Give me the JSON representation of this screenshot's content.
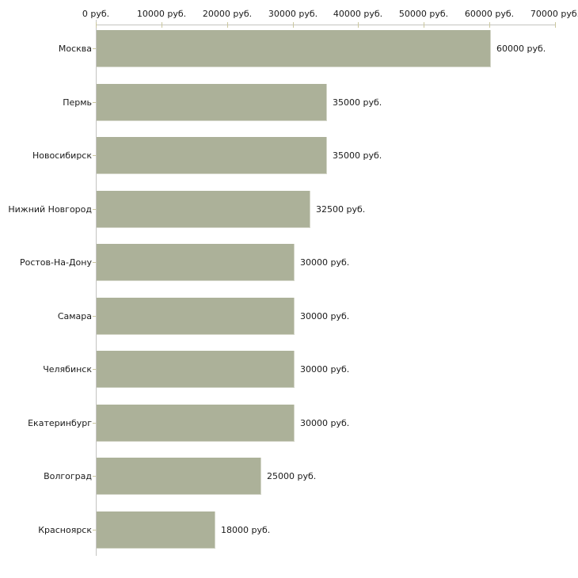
{
  "chart_data": {
    "type": "bar",
    "orientation": "horizontal",
    "title": "",
    "xlabel": "",
    "ylabel": "",
    "unit": "руб.",
    "categories": [
      "Москва",
      "Пермь",
      "Новосибирск",
      "Нижний Новгород",
      "Ростов-На-Дону",
      "Самара",
      "Челябинск",
      "Екатеринбург",
      "Волгоград",
      "Красноярск"
    ],
    "values": [
      60000,
      35000,
      35000,
      32500,
      30000,
      30000,
      30000,
      30000,
      25000,
      18000
    ],
    "value_labels": [
      "60000 руб.",
      "35000 руб.",
      "35000 руб.",
      "32500 руб.",
      "30000 руб.",
      "30000 руб.",
      "30000 руб.",
      "30000 руб.",
      "25000 руб.",
      "18000 руб."
    ],
    "xlim": [
      0,
      70000
    ],
    "x_ticks": [
      0,
      10000,
      20000,
      30000,
      40000,
      50000,
      60000,
      70000
    ],
    "x_tick_labels": [
      "0 руб.",
      "10000 руб.",
      "20000 руб.",
      "30000 руб.",
      "40000 руб.",
      "50000 руб.",
      "60000 руб.",
      "70000 руб."
    ],
    "grid": false,
    "legend": null,
    "colors": {
      "bar_fill": "#acb199",
      "bar_edge": "#d4d6c9",
      "axis_line": "#c4c4c0",
      "tick_mark": "#cbc79e",
      "text": "#1a1a1a",
      "background": "#ffffff"
    }
  }
}
